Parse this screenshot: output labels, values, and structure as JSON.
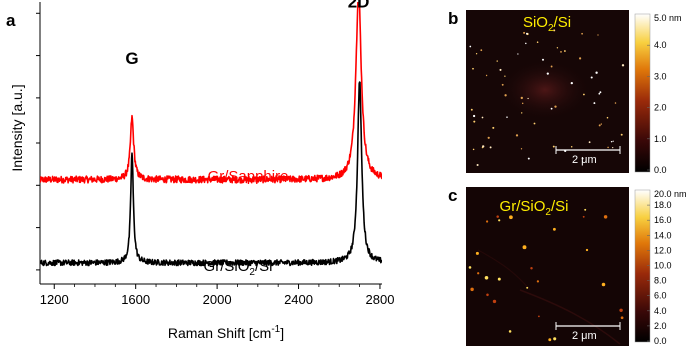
{
  "panel_labels": {
    "a": "a",
    "b": "b",
    "c": "c"
  },
  "chart_data": {
    "type": "line",
    "title": "",
    "xlabel": "Raman Shift [cm⁻¹]",
    "xlabel_base": "Raman Shift [cm",
    "xlabel_sup": "-1",
    "xlabel_end": "]",
    "ylabel": "Intensity [a.u.]",
    "xlim": [
      1130,
      2810
    ],
    "ylim": [
      0,
      1
    ],
    "x_ticks": [
      1200,
      1600,
      2000,
      2400,
      2800
    ],
    "x_tick_labels": [
      "1200",
      "1600",
      "2000",
      "2400",
      "2800"
    ],
    "y_tick_labels_shown": false,
    "grid": false,
    "peak_labels": [
      {
        "text": "G",
        "x": 1582
      },
      {
        "text": "2D",
        "x": 2695
      }
    ],
    "series": [
      {
        "name": "Gr/Sapphire",
        "color": "#ff0000",
        "label_base": "Gr/Sapphire",
        "label_sub": "",
        "label_end": "",
        "baseline": 0.37,
        "noise": 0.012,
        "peaks": [
          {
            "x": 1582,
            "height": 0.22,
            "width": 10
          },
          {
            "x": 2695,
            "height": 0.67,
            "width": 16
          }
        ]
      },
      {
        "name": "Gr/SiO₂/Si",
        "color": "#000000",
        "label_base": "Gr/SiO",
        "label_sub": "2",
        "label_end": "/Si",
        "baseline": 0.075,
        "noise": 0.01,
        "peaks": [
          {
            "x": 1582,
            "height": 0.39,
            "width": 8
          },
          {
            "x": 2700,
            "height": 0.65,
            "width": 12
          }
        ]
      }
    ]
  },
  "afm_images": [
    {
      "panel": "b",
      "label_base": "SiO",
      "label_sub": "2",
      "label_end": "/Si",
      "scale_bar_label": "2 μm",
      "colorbar_max_label": "5.0 nm",
      "colorbar_ticks": [
        "4.0",
        "3.0",
        "2.0",
        "1.0",
        "0.0"
      ],
      "colorbar_max": 5.0
    },
    {
      "panel": "c",
      "label_base": "Gr/SiO",
      "label_sub": "2",
      "label_end": "/Si",
      "scale_bar_label": "2 μm",
      "colorbar_max_label": "20.0 nm",
      "colorbar_ticks": [
        "18.0",
        "16.0",
        "14.0",
        "12.0",
        "10.0",
        "8.0",
        "6.0",
        "4.0",
        "2.0",
        "0.0"
      ],
      "colorbar_max": 20.0
    }
  ]
}
